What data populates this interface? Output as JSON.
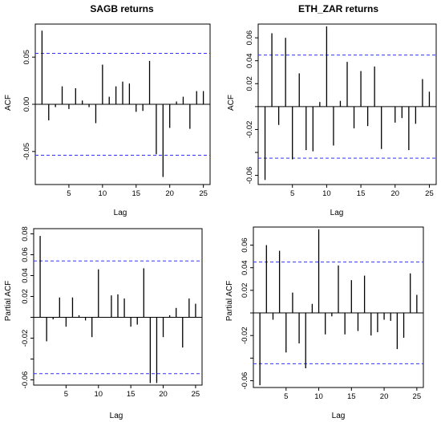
{
  "chart_data": [
    {
      "type": "bar",
      "title": "SAGB returns",
      "xlabel": "Lag",
      "ylabel": "ACF",
      "xlim": [
        0,
        26
      ],
      "ylim": [
        -0.085,
        0.085
      ],
      "x_ticks": [
        5,
        10,
        15,
        20,
        25
      ],
      "y_ticks": [
        -0.05,
        0.0,
        0.05
      ],
      "y_tick_labels": [
        "-0.05",
        "0.00",
        "0.05"
      ],
      "conf_band": [
        0.054,
        -0.054
      ],
      "x": [
        1,
        2,
        3,
        4,
        5,
        6,
        7,
        8,
        9,
        10,
        11,
        12,
        13,
        14,
        15,
        16,
        17,
        18,
        19,
        20,
        21,
        22,
        23,
        24,
        25
      ],
      "values": [
        0.078,
        -0.017,
        -0.003,
        0.019,
        -0.005,
        0.017,
        0.004,
        -0.003,
        -0.02,
        0.042,
        0.008,
        0.019,
        0.024,
        0.022,
        -0.008,
        -0.007,
        0.046,
        -0.053,
        -0.077,
        -0.025,
        0.003,
        0.008,
        -0.026,
        0.014,
        0.014
      ]
    },
    {
      "type": "bar",
      "title": "ETH_ZAR returns",
      "xlabel": "Lag",
      "ylabel": "ACF",
      "xlim": [
        0,
        26
      ],
      "ylim": [
        -0.068,
        0.072
      ],
      "x_ticks": [
        5,
        10,
        15,
        20,
        25
      ],
      "y_ticks": [
        -0.06,
        -0.04,
        -0.02,
        0.0,
        0.02,
        0.04,
        0.06
      ],
      "y_tick_labels": [
        "-0.06",
        "",
        "-0.02",
        "",
        "0.02",
        "0.04",
        "0.06"
      ],
      "conf_band": [
        0.045,
        -0.045
      ],
      "x": [
        1,
        2,
        3,
        4,
        5,
        6,
        7,
        8,
        9,
        10,
        11,
        12,
        13,
        14,
        15,
        16,
        17,
        18,
        19,
        20,
        21,
        22,
        23,
        24,
        25
      ],
      "values": [
        -0.064,
        0.064,
        -0.016,
        0.06,
        -0.046,
        0.029,
        -0.038,
        -0.039,
        0.004,
        0.07,
        -0.034,
        0.005,
        0.039,
        -0.019,
        0.031,
        -0.017,
        0.035,
        -0.037,
        0.0,
        -0.014,
        -0.01,
        -0.038,
        -0.015,
        0.024,
        0.013
      ]
    },
    {
      "type": "bar",
      "title": "",
      "xlabel": "Lag",
      "ylabel": "Partial ACF",
      "xlim": [
        0,
        26
      ],
      "ylim": [
        -0.065,
        0.085
      ],
      "x_ticks": [
        5,
        10,
        15,
        20,
        25
      ],
      "y_ticks": [
        -0.06,
        -0.04,
        -0.02,
        0.0,
        0.02,
        0.04,
        0.06,
        0.08
      ],
      "y_tick_labels": [
        "-0.06",
        "",
        "-0.02",
        "",
        "0.02",
        "0.04",
        "0.06",
        "0.08"
      ],
      "conf_band": [
        0.054,
        -0.054
      ],
      "x": [
        1,
        2,
        3,
        4,
        5,
        6,
        7,
        8,
        9,
        10,
        11,
        12,
        13,
        14,
        15,
        16,
        17,
        18,
        19,
        20,
        21,
        22,
        23,
        24,
        25
      ],
      "values": [
        0.078,
        -0.023,
        -0.002,
        0.019,
        -0.009,
        0.019,
        0.002,
        -0.003,
        -0.019,
        0.046,
        0.0,
        0.021,
        0.022,
        0.018,
        -0.009,
        -0.007,
        0.047,
        -0.063,
        -0.063,
        -0.019,
        0.002,
        0.009,
        -0.029,
        0.018,
        0.013
      ]
    },
    {
      "type": "bar",
      "title": "",
      "xlabel": "Lag",
      "ylabel": "Partial ACF",
      "xlim": [
        0,
        26
      ],
      "ylim": [
        -0.066,
        0.076
      ],
      "x_ticks": [
        5,
        10,
        15,
        20,
        25
      ],
      "y_ticks": [
        -0.06,
        -0.04,
        -0.02,
        0.0,
        0.02,
        0.04,
        0.06
      ],
      "y_tick_labels": [
        "-0.06",
        "",
        "-0.02",
        "",
        "0.02",
        "0.04",
        "0.06"
      ],
      "conf_band": [
        0.045,
        -0.045
      ],
      "x": [
        1,
        2,
        3,
        4,
        5,
        6,
        7,
        8,
        9,
        10,
        11,
        12,
        13,
        14,
        15,
        16,
        17,
        18,
        19,
        20,
        21,
        22,
        23,
        24,
        25
      ],
      "values": [
        -0.064,
        0.06,
        -0.006,
        0.055,
        -0.035,
        0.018,
        -0.027,
        -0.049,
        0.008,
        0.074,
        -0.019,
        -0.003,
        0.042,
        -0.019,
        0.029,
        -0.016,
        0.033,
        -0.02,
        -0.017,
        -0.006,
        -0.007,
        -0.032,
        -0.022,
        0.035,
        0.016
      ]
    }
  ],
  "style": {
    "bar_color": "#000000",
    "band_color": "#3333ff",
    "axis_color": "#000000"
  }
}
